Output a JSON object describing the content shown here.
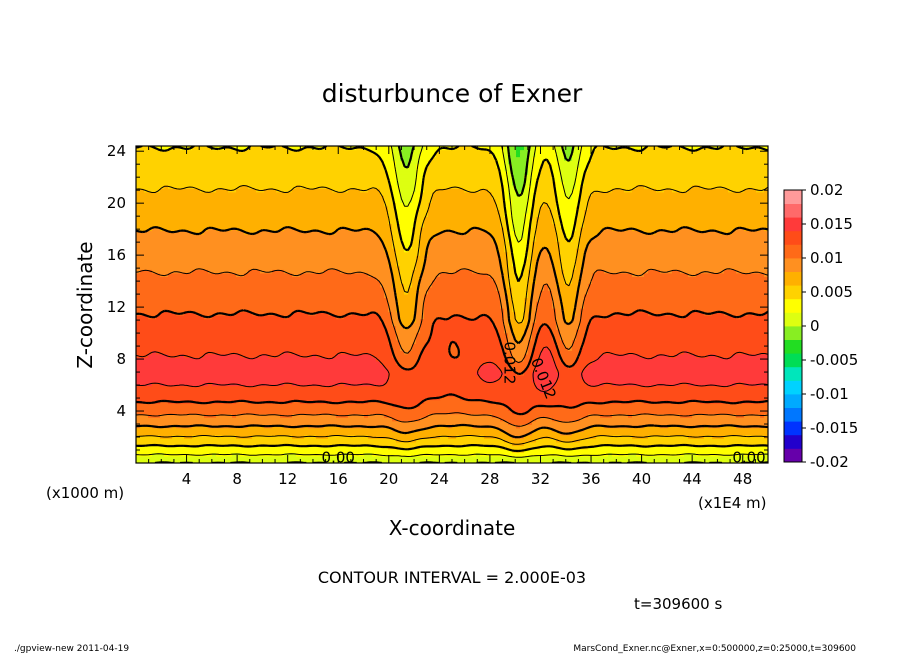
{
  "chart_data": {
    "type": "heatmap",
    "title": "disturbunce of Exner",
    "xlabel": "X-coordinate",
    "ylabel": "Z-coordinate",
    "x_unit_label": "(x1E4 m)",
    "y_unit_label": "(x1000 m)",
    "xlim": [
      0,
      50
    ],
    "ylim": [
      0,
      24.4
    ],
    "x_ticks": [
      4,
      8,
      12,
      16,
      20,
      24,
      28,
      32,
      36,
      40,
      44,
      48
    ],
    "y_ticks": [
      4,
      8,
      12,
      16,
      20,
      24
    ],
    "contour_interval_text": "CONTOUR INTERVAL = 2.000E-03",
    "contour_interval": 0.002,
    "time_label": "t=309600 s",
    "contour_labels": [
      {
        "text": "0.00",
        "x": 16,
        "z": 0.4,
        "rotate": 0
      },
      {
        "text": "0.00",
        "x": 48.5,
        "z": 0.4,
        "rotate": 0
      },
      {
        "text": "0.012",
        "x": 29.5,
        "z": 7.7,
        "rotate": 90
      },
      {
        "text": "0.012",
        "x": 32.2,
        "z": 6.5,
        "rotate": 68
      }
    ],
    "field_description": "Exner disturbance: ~0 at surface, rising to ~0.0145 in a core layer z≈6-9 km, decreasing to ~0.004 at z≈24 km; strong perturbations near x≈21, 30, 34 (x1E4 m).",
    "colorbar": {
      "ticks": [
        "0.02",
        "0.015",
        "0.01",
        "0.005",
        "0",
        "-0.005",
        "-0.01",
        "-0.015",
        "-0.02"
      ],
      "min": -0.02,
      "max": 0.02,
      "colors": [
        "#6600aa",
        "#2200cc",
        "#0033ff",
        "#0077ff",
        "#00aaff",
        "#00d2ff",
        "#00e6bb",
        "#00dd55",
        "#22dd22",
        "#88ee22",
        "#ddff11",
        "#ffff00",
        "#ffd200",
        "#ffb000",
        "#ff9020",
        "#ff6a18",
        "#ff4c18",
        "#ff3a3a",
        "#ff6a6a",
        "#ff9a9a"
      ]
    }
  },
  "footer": {
    "left": "./gpview-new   2011-04-19",
    "right": "MarsCond_Exner.nc@Exner,x=0:500000,z=0:25000,t=309600"
  }
}
